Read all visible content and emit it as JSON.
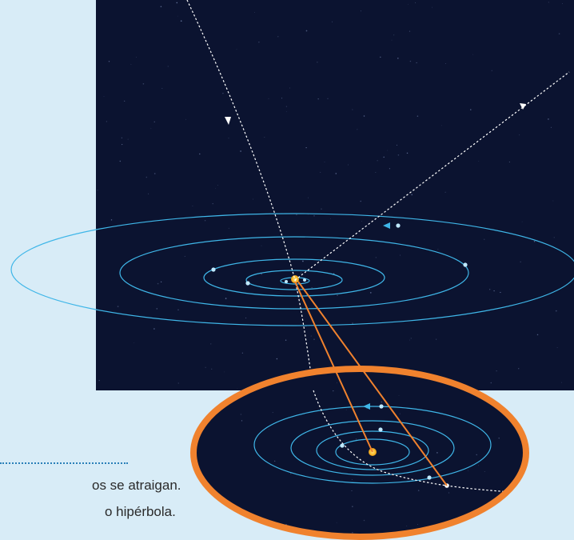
{
  "caption": {
    "line1": "os se atraigan.",
    "line2": "o hipérbola."
  },
  "colors": {
    "space": "#0b1330",
    "page_background": "#d8ecf7",
    "orbit": "#3fb6e8",
    "planet": "#bfe9ff",
    "sun": "#f7b92b",
    "trajectory": "#ffffff",
    "zoom_ring": "#f0822e",
    "zoom_connector": "#f0822e",
    "rule": "#2a7fb8",
    "caption_text": "#2a2a2a"
  },
  "icons": {
    "sun": "sun-icon",
    "planet": "planet-icon",
    "direction_arrow": "arrowhead-icon"
  }
}
